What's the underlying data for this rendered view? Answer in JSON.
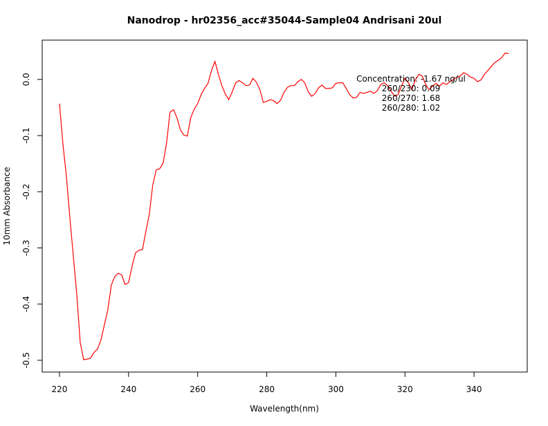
{
  "chart_data": {
    "type": "line",
    "title": "Nanodrop - hr02356_acc#35044-Sample04 Andrisani 20ul",
    "x_label": "Wavelength(nm)",
    "y_label": "10mm Absorbance",
    "annotations": [
      "Concentration: -1.67 ng/ul",
      "260/230: 0.09",
      "260/270: 1.68",
      "260/280: 1.02"
    ],
    "color": "#ff0000",
    "xlim": [
      215,
      355.4
    ],
    "ylim": [
      -0.521,
      0.07
    ],
    "xticks": [
      220,
      240,
      260,
      280,
      300,
      320,
      340
    ],
    "yticks": [
      -0.5,
      -0.4,
      -0.3,
      -0.2,
      -0.1,
      {
        "value": 0,
        "label": "0.0"
      }
    ],
    "x": [
      220,
      221,
      222,
      223,
      224,
      225,
      226,
      227,
      228,
      229,
      230,
      231,
      232,
      233,
      234,
      235,
      236,
      237,
      238,
      239,
      240,
      241,
      242,
      243,
      244,
      245,
      246,
      247,
      248,
      249,
      250,
      251,
      252,
      253,
      254,
      255,
      256,
      257,
      258,
      259,
      260,
      261,
      262,
      263,
      264,
      265,
      266,
      267,
      268,
      269,
      270,
      271,
      272,
      273,
      274,
      275,
      276,
      277,
      278,
      279,
      280,
      281,
      282,
      283,
      284,
      285,
      286,
      287,
      288,
      289,
      290,
      291,
      292,
      293,
      294,
      295,
      296,
      297,
      298,
      299,
      300,
      301,
      302,
      303,
      304,
      305,
      306,
      307,
      308,
      309,
      310,
      311,
      312,
      313,
      314,
      315,
      316,
      317,
      318,
      319,
      320,
      321,
      322,
      323,
      324,
      325,
      326,
      327,
      328,
      329,
      330,
      331,
      332,
      333,
      334,
      335,
      336,
      337,
      338,
      339,
      340,
      341,
      342,
      343,
      344,
      345,
      346,
      347,
      348,
      349,
      350
    ],
    "values": [
      -0.043,
      -0.115,
      -0.172,
      -0.246,
      -0.314,
      -0.382,
      -0.468,
      -0.499,
      -0.498,
      -0.496,
      -0.486,
      -0.48,
      -0.464,
      -0.437,
      -0.41,
      -0.366,
      -0.351,
      -0.345,
      -0.348,
      -0.365,
      -0.362,
      -0.333,
      -0.309,
      -0.304,
      -0.303,
      -0.271,
      -0.24,
      -0.188,
      -0.161,
      -0.159,
      -0.149,
      -0.113,
      -0.058,
      -0.054,
      -0.068,
      -0.09,
      -0.099,
      -0.101,
      -0.068,
      -0.053,
      -0.043,
      -0.027,
      -0.016,
      -0.007,
      0.016,
      0.032,
      0.009,
      -0.011,
      -0.026,
      -0.036,
      -0.022,
      -0.006,
      -0.002,
      -0.006,
      -0.011,
      -0.01,
      0.002,
      -0.005,
      -0.018,
      -0.041,
      -0.039,
      -0.036,
      -0.038,
      -0.043,
      -0.037,
      -0.023,
      -0.014,
      -0.011,
      -0.011,
      -0.004,
      0,
      -0.006,
      -0.022,
      -0.03,
      -0.025,
      -0.015,
      -0.01,
      -0.016,
      -0.016,
      -0.015,
      -0.007,
      -0.006,
      -0.006,
      -0.016,
      -0.027,
      -0.033,
      -0.032,
      -0.023,
      -0.025,
      -0.023,
      -0.021,
      -0.025,
      -0.02,
      -0.009,
      -0.006,
      -0.011,
      -0.021,
      -0.03,
      -0.027,
      -0.012,
      0.002,
      -0.006,
      -0.018,
      -0.001,
      0.009,
      0.006,
      -0.009,
      -0.018,
      -0.012,
      -0.007,
      -0.012,
      -0.006,
      -0.009,
      -0.004,
      0,
      0.004,
      0.006,
      0.012,
      0.009,
      0.004,
      0.002,
      -0.004,
      -0.001,
      0.009,
      0.016,
      0.023,
      0.03,
      0.034,
      0.039,
      0.047,
      0.046
    ]
  }
}
